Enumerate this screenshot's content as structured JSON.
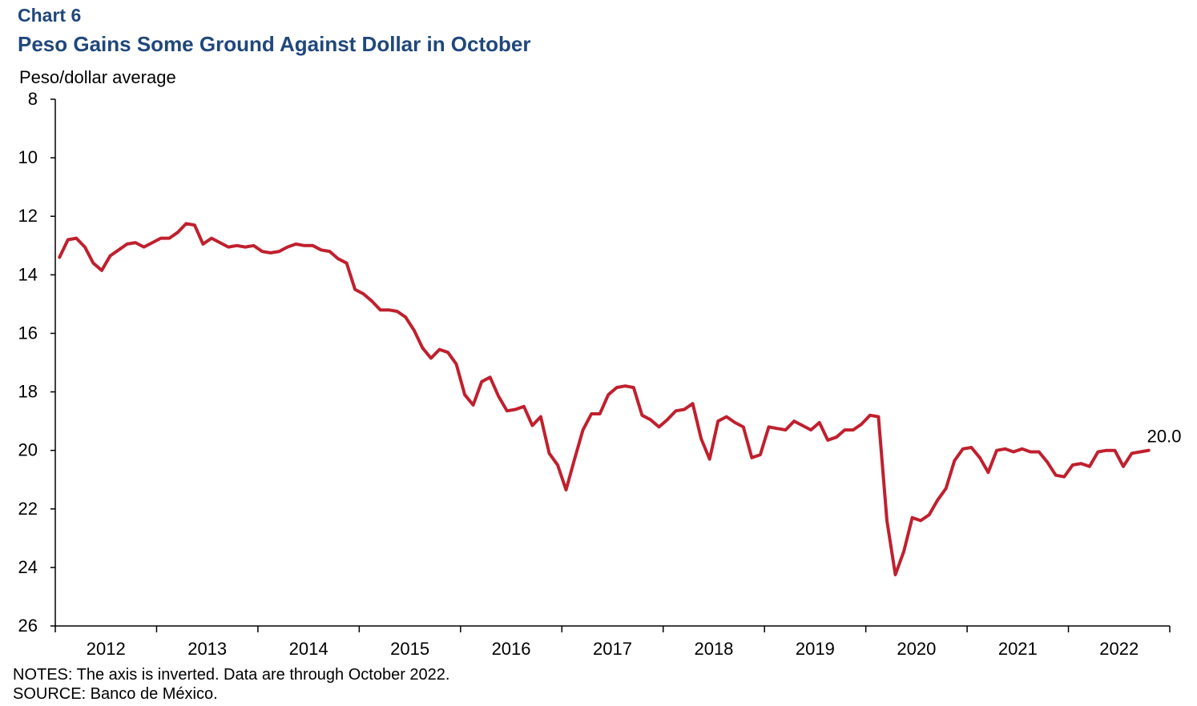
{
  "header": {
    "chart_label": "Chart 6",
    "title": "Peso Gains Some Ground Against Dollar in October"
  },
  "footer": {
    "notes": "NOTES: The axis is inverted. Data are through  October 2022.",
    "source": "SOURCE: Banco de México."
  },
  "colors": {
    "line": "#c0202e",
    "title": "#1f477b",
    "axis": "#000000"
  },
  "chart_data": {
    "type": "line",
    "title": "Peso Gains Some Ground Against Dollar in October",
    "ylabel": "Peso/dollar average",
    "xlabel": "",
    "y_inverted": true,
    "ylim": [
      8,
      26
    ],
    "y_ticks": [
      8,
      10,
      12,
      14,
      16,
      18,
      20,
      22,
      24,
      26
    ],
    "x_tick_labels": [
      "2012",
      "2013",
      "2014",
      "2015",
      "2016",
      "2017",
      "2018",
      "2019",
      "2020",
      "2021",
      "2022"
    ],
    "grid": false,
    "legend": "none",
    "end_label": "20.0",
    "series": [
      {
        "start": "2012-01",
        "end": "2022-10",
        "frequency": "monthly",
        "values": [
          13.4,
          12.8,
          12.75,
          13.05,
          13.6,
          13.85,
          13.35,
          13.15,
          12.95,
          12.9,
          13.05,
          12.9,
          12.75,
          12.75,
          12.55,
          12.25,
          12.3,
          12.95,
          12.75,
          12.9,
          13.05,
          13.0,
          13.05,
          13.0,
          13.2,
          13.25,
          13.2,
          13.05,
          12.95,
          13.0,
          13.0,
          13.15,
          13.2,
          13.45,
          13.6,
          14.5,
          14.65,
          14.9,
          15.2,
          15.2,
          15.25,
          15.45,
          15.9,
          16.5,
          16.85,
          16.55,
          16.65,
          17.05,
          18.1,
          18.45,
          17.65,
          17.5,
          18.15,
          18.65,
          18.6,
          18.5,
          19.15,
          18.85,
          20.1,
          20.5,
          21.35,
          20.3,
          19.3,
          18.75,
          18.75,
          18.1,
          17.85,
          17.8,
          17.85,
          18.8,
          18.95,
          19.2,
          18.95,
          18.65,
          18.6,
          18.4,
          19.6,
          20.3,
          19.0,
          18.85,
          19.05,
          19.2,
          20.25,
          20.15,
          19.2,
          19.25,
          19.3,
          19.0,
          19.15,
          19.3,
          19.05,
          19.65,
          19.55,
          19.3,
          19.3,
          19.1,
          18.8,
          18.85,
          22.4,
          24.25,
          23.45,
          22.3,
          22.4,
          22.2,
          21.7,
          21.3,
          20.35,
          19.95,
          19.9,
          20.25,
          20.75,
          20.0,
          19.95,
          20.05,
          19.95,
          20.05,
          20.05,
          20.4,
          20.85,
          20.9,
          20.5,
          20.45,
          20.55,
          20.05,
          20.0,
          20.0,
          20.55,
          20.1,
          20.05,
          20.0
        ]
      }
    ]
  }
}
